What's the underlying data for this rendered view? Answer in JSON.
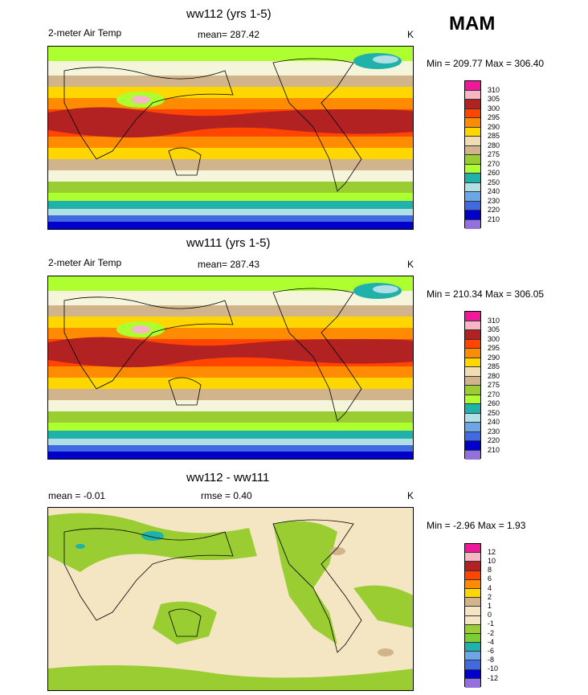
{
  "season": "MAM",
  "panels": [
    {
      "title": "ww112 (yrs 1-5)",
      "left_label": "2-meter Air Temp",
      "center_label": "mean= 287.42",
      "units": "K",
      "minmax": "Min = 209.77 Max = 306.40",
      "legend": [
        "310",
        "305",
        "300",
        "295",
        "290",
        "285",
        "280",
        "275",
        "270",
        "260",
        "250",
        "240",
        "230",
        "220",
        "210"
      ]
    },
    {
      "title": "ww111 (yrs 1-5)",
      "left_label": "2-meter Air Temp",
      "center_label": "mean= 287.43",
      "units": "K",
      "minmax": "Min = 210.34 Max = 306.05",
      "legend": [
        "310",
        "305",
        "300",
        "295",
        "290",
        "285",
        "280",
        "275",
        "270",
        "260",
        "250",
        "240",
        "230",
        "220",
        "210"
      ]
    },
    {
      "title": "ww112 - ww111",
      "left_label": "mean =  -0.01",
      "center_label": "rmse =   0.40",
      "units": "K",
      "minmax": "Min =  -2.96 Max =   1.93",
      "legend": [
        "12",
        "10",
        "8",
        "6",
        "4",
        "2",
        "1",
        "0",
        "-1",
        "-2",
        "-4",
        "-6",
        "-8",
        "-10",
        "-12"
      ]
    }
  ],
  "colors": {
    "temp_scale": [
      "#f0189a",
      "#f7b6c6",
      "#b22222",
      "#ff4500",
      "#ff8c00",
      "#ffd700",
      "#f0ddb4",
      "#d2b48c",
      "#9acd32",
      "#adff2f",
      "#20b2aa",
      "#b0e0e6",
      "#6ca6e6",
      "#4169e1",
      "#0000cd",
      "#9370db"
    ],
    "diff_scale": [
      "#f0189a",
      "#f7b6c6",
      "#b22222",
      "#ff4500",
      "#ff8c00",
      "#ffd700",
      "#d2b48c",
      "#f5e6c3",
      "#9acd32",
      "#7ccd32",
      "#20b2aa",
      "#6ca6e6",
      "#4169e1",
      "#0000cd",
      "#9370db"
    ]
  }
}
